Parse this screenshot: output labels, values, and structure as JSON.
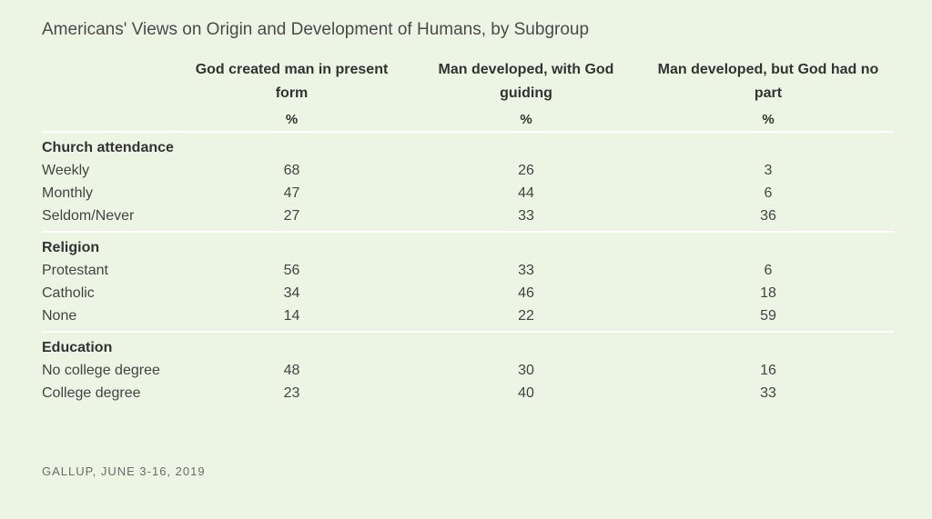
{
  "chart_data": {
    "type": "table",
    "title": "Americans' Views on Origin and Development of Humans, by Subgroup",
    "columns": [
      "God created man in present form",
      "Man developed, with God guiding",
      "Man developed, but God had no part"
    ],
    "unit": "%",
    "groups": [
      {
        "name": "Church attendance",
        "rows": [
          {
            "label": "Weekly",
            "values": [
              68,
              26,
              3
            ]
          },
          {
            "label": "Monthly",
            "values": [
              47,
              44,
              6
            ]
          },
          {
            "label": "Seldom/Never",
            "values": [
              27,
              33,
              36
            ]
          }
        ]
      },
      {
        "name": "Religion",
        "rows": [
          {
            "label": "Protestant",
            "values": [
              56,
              33,
              6
            ]
          },
          {
            "label": "Catholic",
            "values": [
              34,
              46,
              18
            ]
          },
          {
            "label": "None",
            "values": [
              14,
              22,
              59
            ]
          }
        ]
      },
      {
        "name": "Education",
        "rows": [
          {
            "label": "No college degree",
            "values": [
              48,
              30,
              16
            ]
          },
          {
            "label": "College degree",
            "values": [
              23,
              40,
              33
            ]
          }
        ]
      }
    ],
    "source": "GALLUP, JUNE 3-16, 2019"
  }
}
